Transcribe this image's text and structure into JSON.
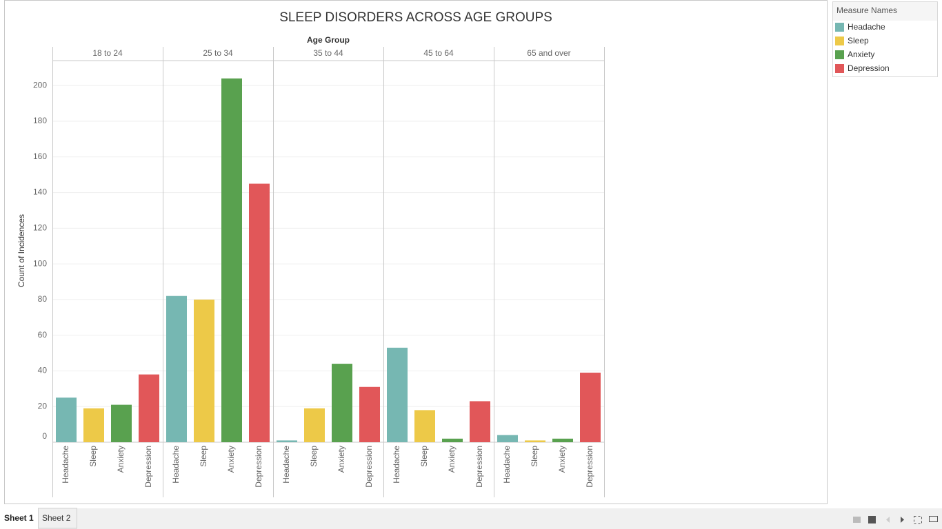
{
  "chart_data": {
    "type": "bar",
    "title": "SLEEP DISORDERS ACROSS AGE GROUPS",
    "x_label": "Age Group",
    "y_label": "Count of Incidences",
    "legend_title": "Measure Names",
    "legend": "right",
    "categories": [
      "18 to 24",
      "25 to 34",
      "35 to 44",
      "45 to 64",
      "65 and over"
    ],
    "series": [
      {
        "name": "Headache",
        "color": "#76b7b2",
        "values": [
          25,
          82,
          1,
          53,
          4
        ]
      },
      {
        "name": "Sleep",
        "color": "#edc948",
        "values": [
          19,
          80,
          19,
          18,
          1
        ]
      },
      {
        "name": "Anxiety",
        "color": "#59a14f",
        "values": [
          21,
          204,
          44,
          2,
          2
        ]
      },
      {
        "name": "Depression",
        "color": "#e15759",
        "values": [
          38,
          145,
          31,
          23,
          39
        ]
      }
    ],
    "ylim": [
      0,
      214
    ],
    "yticks": [
      0,
      20,
      40,
      60,
      80,
      100,
      120,
      140,
      160,
      180,
      200
    ],
    "grid": true
  },
  "tabs": [
    "Sheet 1",
    "Sheet 2"
  ]
}
